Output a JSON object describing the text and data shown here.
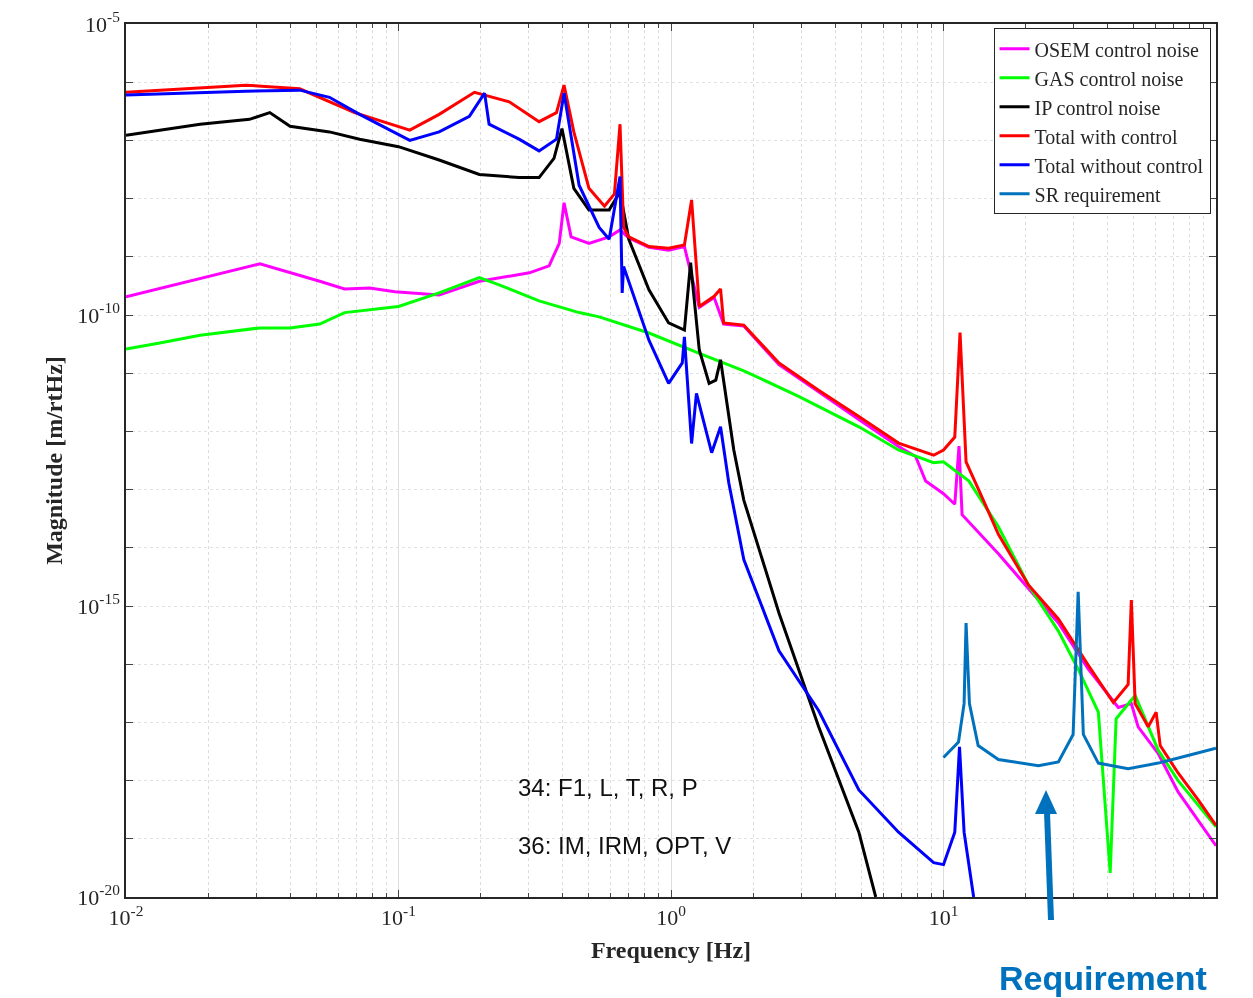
{
  "chart_data": {
    "type": "line",
    "xlabel": "Frequency [Hz]",
    "ylabel": "Magnitude [m/rtHz]",
    "log": "xy",
    "grid": true,
    "legend": "top right",
    "xlim": [
      0.01,
      100
    ],
    "ylim": [
      1e-20,
      1e-05
    ],
    "xticks": [
      {
        "value": 0.01,
        "label": "10$^{-2}$"
      },
      {
        "value": 0.1,
        "label": "10$^{-1}$"
      },
      {
        "value": 1,
        "label": "10$^{0}$"
      },
      {
        "value": 10,
        "label": "10$^{1}$"
      }
    ],
    "yticks": [
      {
        "value": 1e-20,
        "label": "10$^{-20}$"
      },
      {
        "value": 1e-19,
        "label": null
      },
      {
        "value": 1e-18,
        "label": null
      },
      {
        "value": 1e-17,
        "label": null
      },
      {
        "value": 1e-16,
        "label": null
      },
      {
        "value": 1e-15,
        "label": "10$^{-15}$"
      },
      {
        "value": 1e-14,
        "label": null
      },
      {
        "value": 1e-13,
        "label": null
      },
      {
        "value": 1e-12,
        "label": null
      },
      {
        "value": 1e-11,
        "label": null
      },
      {
        "value": 1e-10,
        "label": "10$^{-10}$"
      },
      {
        "value": 1e-09,
        "label": null
      },
      {
        "value": 1e-08,
        "label": null
      },
      {
        "value": 1e-07,
        "label": null
      },
      {
        "value": 1e-06,
        "label": null
      },
      {
        "value": 1e-05,
        "label": "10$^{-5}$"
      }
    ],
    "series": [
      {
        "name": "OSEM control noise",
        "color": "#ff00ff",
        "x": [
          0.01,
          0.031,
          0.0514,
          0.0634,
          0.0784,
          0.097,
          0.141,
          0.198,
          0.302,
          0.357,
          0.389,
          0.405,
          0.43,
          0.5,
          0.593,
          0.65,
          0.7,
          0.83,
          0.98,
          1.12,
          1.27,
          1.44,
          1.56,
          1.85,
          2.49,
          3.48,
          4.89,
          6.84,
          7.9,
          8.6,
          10,
          11.0,
          11.4,
          11.7,
          15.9,
          20.5,
          26.4,
          34,
          43.8,
          48.9,
          51.8,
          61.4,
          72.6,
          100
        ],
        "values": [
          2.05e-10,
          7.6e-10,
          3.8e-10,
          2.8e-10,
          2.9e-10,
          2.5e-10,
          2.2e-10,
          3.8e-10,
          5.3e-10,
          7e-10,
          1.7e-09,
          8.5e-09,
          2.2e-09,
          1.7e-09,
          2.2e-09,
          2.9e-09,
          2.1e-09,
          1.45e-09,
          1.3e-09,
          1.5e-09,
          1.35e-10,
          2e-10,
          7e-11,
          6.5e-11,
          1.4e-11,
          4.8e-12,
          1.6e-12,
          5.5e-13,
          3.7e-13,
          1.4e-13,
          8.5e-14,
          5.6e-14,
          5.6e-13,
          3.7e-14,
          7.9e-15,
          2e-15,
          5.1e-16,
          8.2e-17,
          1.8e-17,
          2.1e-17,
          8.4e-18,
          2.9e-18,
          6.4e-19,
          7.6e-20
        ]
      },
      {
        "name": "GAS control noise",
        "color": "#00ff00",
        "x": [
          0.01,
          0.0133,
          0.0187,
          0.031,
          0.04,
          0.0514,
          0.0634,
          0.1,
          0.141,
          0.198,
          0.234,
          0.328,
          0.46,
          0.545,
          0.83,
          1.27,
          1.85,
          2.94,
          4.89,
          6.84,
          9.2,
          10,
          12.4,
          15.9,
          20.5,
          26.4,
          31.2,
          37,
          40.9,
          43,
          50.5,
          61.4,
          72.6,
          100
        ],
        "values": [
          2.6e-11,
          3.3e-11,
          4.5e-11,
          6e-11,
          6e-11,
          7e-11,
          1.1e-10,
          1.4e-10,
          2.4e-10,
          4.4e-10,
          3.3e-10,
          1.75e-10,
          1.1e-10,
          9.3e-11,
          4.9e-11,
          2.2e-11,
          1.1e-11,
          4e-12,
          1.2e-12,
          4.8e-13,
          2.9e-13,
          3e-13,
          1.4e-13,
          2.3e-14,
          2.3e-15,
          3.7e-16,
          8.2e-17,
          1.5e-17,
          2.6e-20,
          1.15e-17,
          2.9e-17,
          3.3e-18,
          1e-18,
          1.6e-19
        ]
      },
      {
        "name": "IP control noise",
        "color": "#000000",
        "x": [
          0.01,
          0.0133,
          0.0187,
          0.0284,
          0.0337,
          0.04,
          0.0558,
          0.072,
          0.1,
          0.141,
          0.198,
          0.277,
          0.328,
          0.372,
          0.398,
          0.44,
          0.5,
          0.593,
          0.65,
          0.7,
          0.83,
          0.98,
          1.12,
          1.18,
          1.27,
          1.38,
          1.46,
          1.52,
          1.7,
          1.85,
          2.49,
          3.48,
          4.89,
          5.64
        ],
        "values": [
          1.23e-07,
          1.5e-07,
          1.9e-07,
          2.3e-07,
          3e-07,
          1.75e-07,
          1.4e-07,
          1.05e-07,
          7.8e-08,
          4.6e-08,
          2.6e-08,
          2.3e-08,
          2.3e-08,
          4.9e-08,
          1.6e-07,
          1.5e-08,
          6.4e-09,
          6.4e-09,
          1.3e-08,
          2e-09,
          2.7e-10,
          7.3e-11,
          5.5e-11,
          7.9e-10,
          2.5e-11,
          6.7e-12,
          7.6e-12,
          1.7e-11,
          4.8e-13,
          6.6e-14,
          7.6e-16,
          8.5e-18,
          1.3e-19,
          1e-20
        ]
      },
      {
        "name": "Total with control",
        "color": "#ff0000",
        "x": [
          0.01,
          0.0275,
          0.0434,
          0.069,
          0.11,
          0.141,
          0.19,
          0.255,
          0.328,
          0.38,
          0.405,
          0.44,
          0.5,
          0.57,
          0.62,
          0.65,
          0.67,
          0.7,
          0.83,
          0.98,
          1.12,
          1.19,
          1.27,
          1.44,
          1.52,
          1.56,
          1.85,
          2.49,
          3.48,
          4.89,
          6.84,
          9.2,
          10,
          11.0,
          11.5,
          12.1,
          14,
          15.9,
          20.5,
          26.4,
          34,
          42,
          47.6,
          48.9,
          50.5,
          56.4,
          60.3,
          62.4,
          72.6,
          85.9,
          100
        ],
        "values": [
          6.7e-07,
          8.9e-07,
          7.7e-07,
          3e-07,
          1.5e-07,
          2.8e-07,
          6.7e-07,
          4.6e-07,
          2.1e-07,
          3e-07,
          8.9e-07,
          1.4e-07,
          1.5e-08,
          7.4e-09,
          1.2e-08,
          1.9e-07,
          3.2e-09,
          2.2e-09,
          1.5e-09,
          1.4e-09,
          1.6e-09,
          9.5e-09,
          1.4e-10,
          2.1e-10,
          2.8e-10,
          7.3e-11,
          6.7e-11,
          1.5e-11,
          5.1e-12,
          1.8e-12,
          6.3e-13,
          3.9e-13,
          4.8e-13,
          8e-13,
          5e-11,
          3e-13,
          6.6e-14,
          1.7e-14,
          2.3e-15,
          6e-16,
          9.6e-17,
          2.2e-17,
          4.5e-17,
          1.26e-15,
          2.1e-17,
          8.4e-18,
          1.5e-17,
          4e-18,
          1.35e-18,
          4.7e-19,
          1.7e-19
        ]
      },
      {
        "name": "Total without control",
        "color": "#0000ff",
        "x": [
          0.01,
          0.0275,
          0.0434,
          0.0558,
          0.072,
          0.11,
          0.141,
          0.182,
          0.207,
          0.215,
          0.277,
          0.328,
          0.38,
          0.405,
          0.46,
          0.545,
          0.593,
          0.65,
          0.662,
          0.67,
          0.83,
          0.98,
          1.1,
          1.12,
          1.19,
          1.24,
          1.41,
          1.52,
          1.63,
          1.85,
          2.49,
          3.48,
          4.89,
          6.84,
          9.2,
          10,
          11.0,
          11.45,
          11.9,
          12.9
        ],
        "values": [
          6e-07,
          7e-07,
          7.3e-07,
          5.5e-07,
          2.8e-07,
          1e-07,
          1.4e-07,
          2.6e-07,
          6.5e-07,
          1.9e-07,
          1.05e-07,
          6.6e-08,
          1.05e-07,
          6.5e-07,
          1.7e-08,
          3.2e-09,
          2e-09,
          2.4e-08,
          2.4e-10,
          6.8e-10,
          3.7e-11,
          6.7e-12,
          1.5e-11,
          4.2e-11,
          6.2e-13,
          4.5e-12,
          4.3e-13,
          1.2e-12,
          1.3e-13,
          6.3e-15,
          1.7e-16,
          1.6e-17,
          6.9e-19,
          1.3e-19,
          3.9e-20,
          3.6e-20,
          1.3e-19,
          3.8e-18,
          1.3e-19,
          1e-20
        ]
      },
      {
        "name": "SR requirement",
        "color": "#0072bd",
        "x": [
          10,
          11.35,
          11.9,
          12.1,
          12.45,
          13.4,
          15.9,
          22.3,
          26.4,
          29.9,
          31.2,
          32.6,
          37,
          47.6,
          61.4,
          78.9,
          100
        ],
        "values": [
          2.5e-18,
          4.6e-18,
          2.1e-17,
          5.1e-16,
          2.1e-17,
          4e-18,
          2.3e-18,
          1.8e-18,
          2.1e-18,
          6.2e-18,
          1.75e-15,
          6.2e-18,
          2e-18,
          1.6e-18,
          2e-18,
          2.7e-18,
          3.6e-18
        ]
      }
    ],
    "annotations": [
      "34: F1, L, T, R, P",
      "36: IM, IRM, OPT, V",
      "Requirement"
    ]
  }
}
